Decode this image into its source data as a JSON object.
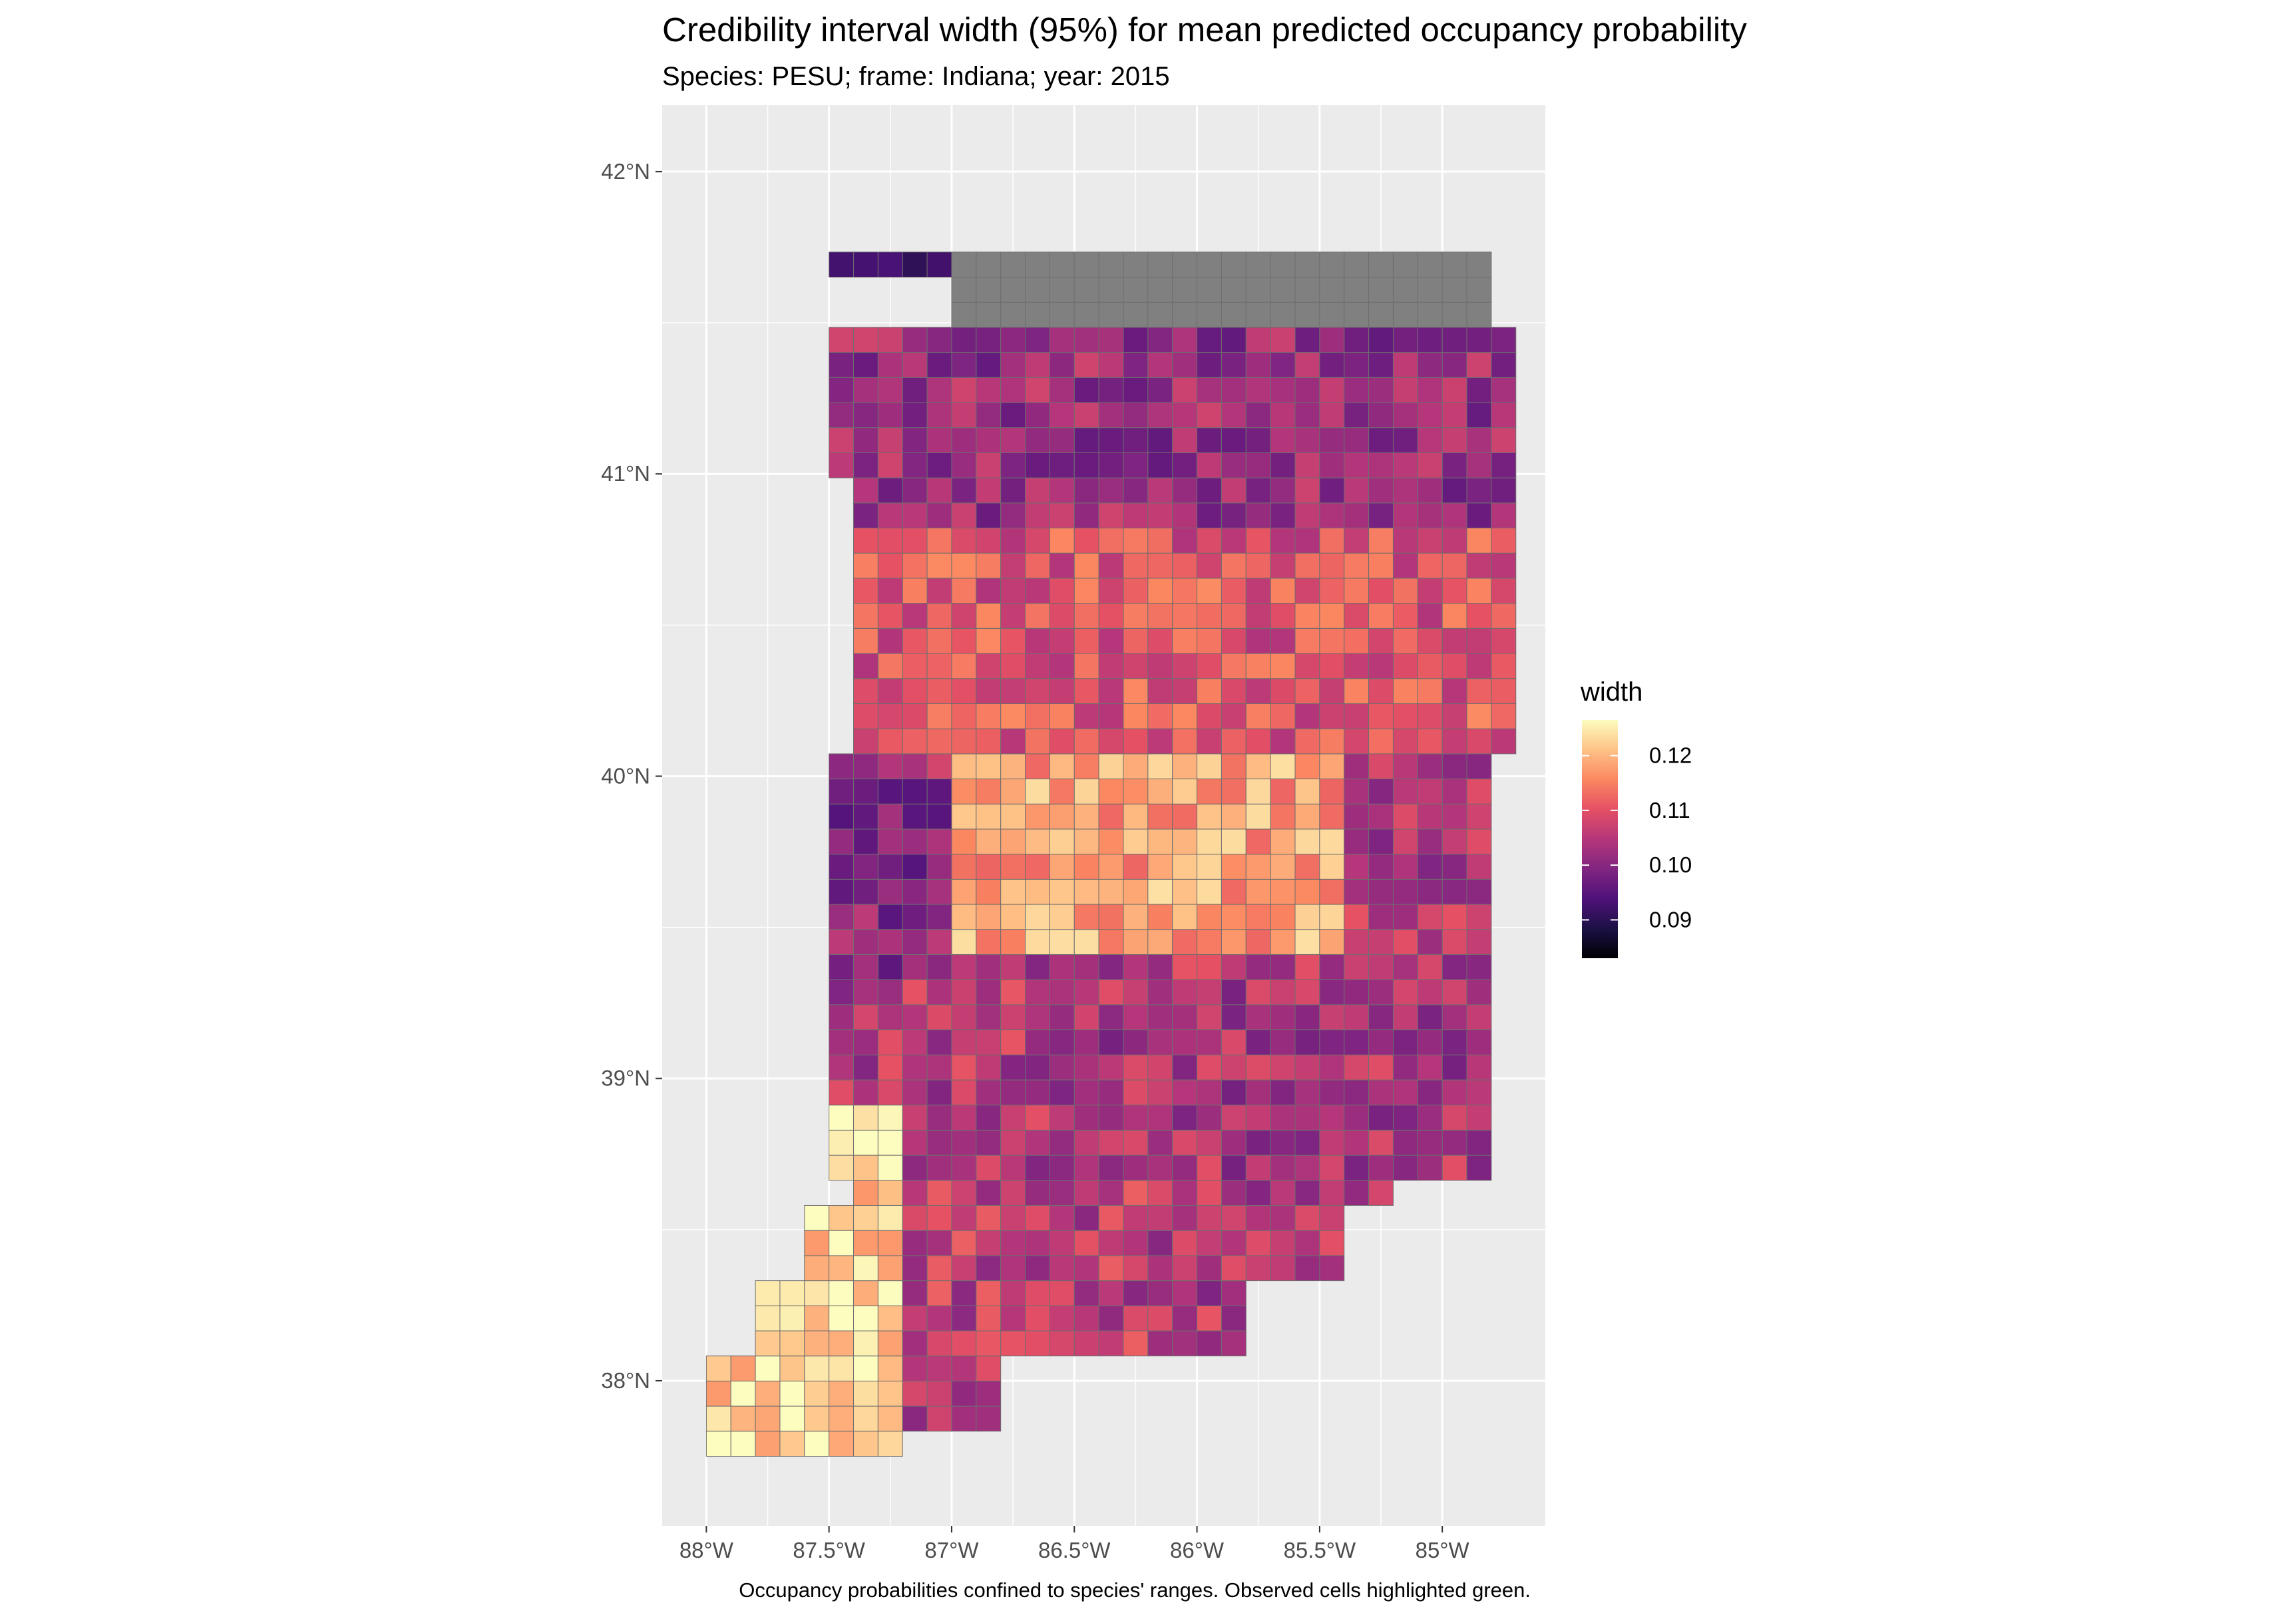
{
  "figure": {
    "title": "Credibility interval width (95%) for mean predicted occupancy probability",
    "subtitle": "Species: PESU; frame: Indiana; year: 2015",
    "caption": "Occupancy probabilities confined to species' ranges. Observed cells highlighted green."
  },
  "map": {
    "x_axis": {
      "range_lon": [
        -88.18,
        -84.58
      ],
      "ticks": [
        {
          "lon": -88.0,
          "label": "88°W"
        },
        {
          "lon": -87.5,
          "label": "87.5°W"
        },
        {
          "lon": -87.0,
          "label": "87°W"
        },
        {
          "lon": -86.5,
          "label": "86.5°W"
        },
        {
          "lon": -86.0,
          "label": "86°W"
        },
        {
          "lon": -85.5,
          "label": "85.5°W"
        },
        {
          "lon": -85.0,
          "label": "85°W"
        }
      ]
    },
    "y_axis": {
      "range_lat": [
        37.52,
        42.22
      ],
      "ticks": [
        {
          "lat": 42.0,
          "label": "42°N"
        },
        {
          "lat": 41.0,
          "label": "41°N"
        },
        {
          "lat": 40.0,
          "label": "40°N"
        },
        {
          "lat": 39.0,
          "label": "39°N"
        },
        {
          "lat": 38.0,
          "label": "38°N"
        }
      ]
    },
    "grid": true,
    "panel_background": "#ebebeb",
    "gridline_color": "#ffffff",
    "na_fill": "#808080",
    "observed_outline": "#8fbc8f"
  },
  "legend": {
    "title": "width",
    "position": "right",
    "range": [
      0.083,
      0.1265
    ],
    "ticks": [
      {
        "value": 0.12,
        "label": "0.12"
      },
      {
        "value": 0.11,
        "label": "0.11"
      },
      {
        "value": 0.1,
        "label": "0.10"
      },
      {
        "value": 0.09,
        "label": "0.09"
      }
    ],
    "colors": [
      "#000004",
      "#1c1044",
      "#4f127b",
      "#812581",
      "#b5367a",
      "#e55064",
      "#fb8761",
      "#fec287",
      "#fcfdbf"
    ]
  },
  "chart_data": {
    "type": "heatmap",
    "subject": "Indiana occupancy credibility-interval width grid",
    "cell_size_deg": [
      0.1,
      0.083
    ],
    "value_range": [
      0.083,
      0.1265
    ],
    "regions": [
      {
        "name": "northern counties (NA, grey)",
        "lat_range": [
          41.45,
          41.75
        ],
        "lon_range": [
          -87.05,
          -84.85
        ],
        "value": null
      },
      {
        "name": "northwest corner",
        "lat_range": [
          41.45,
          41.75
        ],
        "lon_range": [
          -87.55,
          -87.05
        ],
        "approx_width": 0.088
      },
      {
        "name": "northern band",
        "lat_range": [
          40.8,
          41.45
        ],
        "lon_range": [
          -87.55,
          -84.75
        ],
        "approx_width": 0.102
      },
      {
        "name": "central-north band",
        "lat_range": [
          40.1,
          40.8
        ],
        "lon_range": [
          -87.55,
          -84.75
        ],
        "approx_width": 0.11
      },
      {
        "name": "central hotspot",
        "lat_range": [
          39.4,
          40.1
        ],
        "lon_range": [
          -87.0,
          -85.4
        ],
        "approx_width": 0.118
      },
      {
        "name": "west-central",
        "lat_range": [
          39.3,
          40.0
        ],
        "lon_range": [
          -87.55,
          -87.0
        ],
        "approx_width": 0.1
      },
      {
        "name": "southeast",
        "lat_range": [
          38.6,
          39.3
        ],
        "lon_range": [
          -86.4,
          -84.8
        ],
        "approx_width": 0.104
      },
      {
        "name": "southwest corner",
        "lat_range": [
          37.75,
          38.9
        ],
        "lon_range": [
          -88.0,
          -87.2
        ],
        "approx_width": 0.123
      },
      {
        "name": "south-central",
        "lat_range": [
          37.9,
          38.7
        ],
        "lon_range": [
          -87.2,
          -86.2
        ],
        "approx_width": 0.106
      }
    ]
  }
}
